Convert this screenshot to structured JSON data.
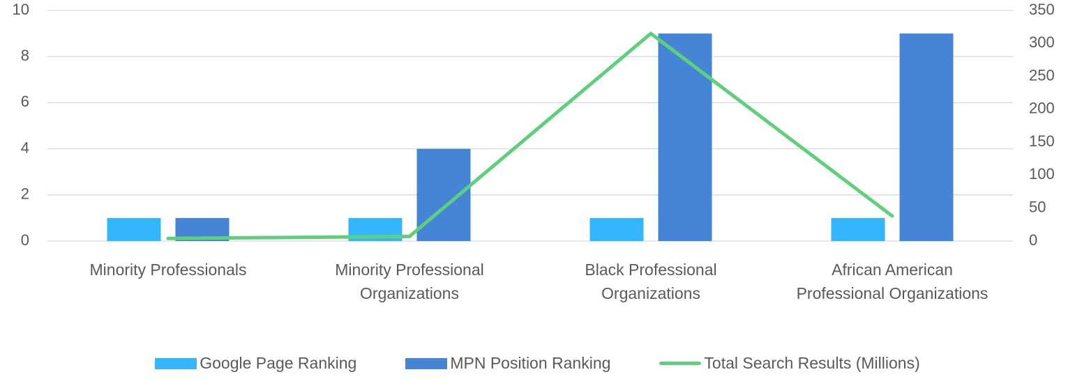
{
  "chart_data": {
    "type": "bar-line",
    "categories": [
      "Minority Professionals",
      "Minority Professional Organizations",
      "Black Professional Organizations",
      "African American Professional Organizations"
    ],
    "series": [
      {
        "name": "Google Page Ranking",
        "type": "bar",
        "color": "#33b5ff",
        "values": [
          1,
          1,
          1,
          1
        ]
      },
      {
        "name": "MPN Position Ranking",
        "type": "bar",
        "color": "#4585d6",
        "values": [
          1,
          4,
          9,
          9
        ]
      },
      {
        "name": "Total Search Results (Millions)",
        "type": "line",
        "axis": "y2",
        "color": "#5ecf7c",
        "values": [
          4,
          7,
          315,
          38
        ]
      }
    ],
    "ylim": [
      0,
      10
    ],
    "yticks": [
      0,
      2,
      4,
      6,
      8,
      10
    ],
    "y2lim": [
      0,
      350
    ],
    "y2ticks": [
      0,
      50,
      100,
      150,
      200,
      250,
      300,
      350
    ],
    "grid": true,
    "legend": "bottom"
  }
}
